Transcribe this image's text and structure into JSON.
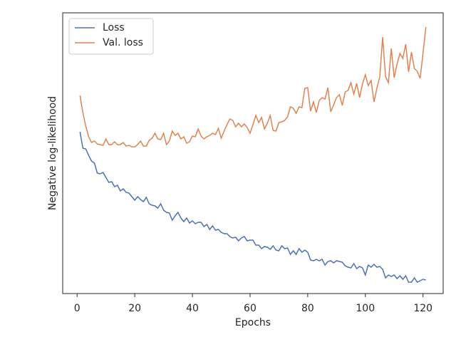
{
  "chart_data": {
    "type": "line",
    "x_label": "Epochs",
    "y_label": "Negative log-likelihood",
    "x": [
      1,
      2,
      3,
      4,
      5,
      6,
      7,
      8,
      9,
      10,
      11,
      12,
      13,
      14,
      15,
      16,
      17,
      18,
      19,
      20,
      21,
      22,
      23,
      24,
      25,
      26,
      27,
      28,
      29,
      30,
      31,
      32,
      33,
      34,
      35,
      36,
      37,
      38,
      39,
      40,
      41,
      42,
      43,
      44,
      45,
      46,
      47,
      48,
      49,
      50,
      51,
      52,
      53,
      54,
      55,
      56,
      57,
      58,
      59,
      60,
      61,
      62,
      63,
      64,
      65,
      66,
      67,
      68,
      69,
      70,
      71,
      72,
      73,
      74,
      75,
      76,
      77,
      78,
      79,
      80,
      81,
      82,
      83,
      84,
      85,
      86,
      87,
      88,
      89,
      90,
      91,
      92,
      93,
      94,
      95,
      96,
      97,
      98,
      99,
      100,
      101,
      102,
      103,
      104,
      105,
      106,
      107,
      108,
      109,
      110,
      111,
      112,
      113,
      114,
      115,
      116,
      117,
      118,
      119,
      120,
      121
    ],
    "series": [
      {
        "name": "Loss",
        "color": "#4c72b0",
        "values": [
          227,
          204,
          203,
          194,
          186,
          183,
          169,
          168,
          170,
          163,
          156,
          157,
          150,
          152,
          144,
          147,
          142,
          141,
          136,
          131,
          136,
          132,
          129,
          135,
          126,
          124,
          123,
          120,
          126,
          117,
          114,
          113,
          103,
          109,
          114,
          106,
          101,
          106,
          99,
          102,
          98,
          100,
          100,
          94,
          97,
          90,
          95,
          89,
          90,
          86,
          84,
          84,
          80,
          78,
          79,
          74,
          78,
          80,
          74,
          75,
          75,
          68,
          68,
          63,
          66,
          65,
          62,
          67,
          61,
          60,
          67,
          63,
          64,
          55,
          60,
          55,
          63,
          58,
          61,
          58,
          47,
          46,
          48,
          46,
          48,
          40,
          45,
          46,
          43,
          46,
          45,
          44,
          39,
          37,
          36,
          42,
          35,
          38,
          36,
          26,
          40,
          37,
          41,
          37,
          38,
          34,
          22,
          26,
          24,
          26,
          21,
          25,
          20,
          25,
          16,
          16,
          22,
          16,
          18,
          20,
          19
        ]
      },
      {
        "name": "Val. loss",
        "color": "#dd8452",
        "values": [
          278,
          254,
          235,
          220,
          212,
          214,
          210,
          209,
          208,
          217,
          209,
          209,
          213,
          209,
          209,
          212,
          207,
          208,
          206,
          206,
          209,
          214,
          207,
          207,
          215,
          218,
          225,
          217,
          216,
          225,
          209,
          214,
          228,
          222,
          225,
          217,
          220,
          211,
          213,
          221,
          220,
          231,
          221,
          217,
          220,
          222,
          225,
          223,
          232,
          218,
          228,
          237,
          245,
          243,
          234,
          239,
          234,
          238,
          233,
          225,
          237,
          250,
          240,
          247,
          231,
          239,
          250,
          229,
          228,
          240,
          241,
          243,
          248,
          262,
          260,
          253,
          262,
          261,
          288,
          289,
          256,
          269,
          254,
          271,
          275,
          273,
          289,
          255,
          265,
          275,
          279,
          264,
          283,
          285,
          296,
          280,
          295,
          275,
          294,
          307,
          292,
          299,
          269,
          288,
          304,
          360,
          305,
          296,
          344,
          303,
          322,
          337,
          330,
          350,
          311,
          339,
          316,
          312,
          302,
          337,
          374
        ]
      }
    ],
    "xlim": [
      -5,
      127
    ],
    "xticks": [
      0,
      20,
      40,
      60,
      80,
      100,
      120
    ],
    "ylim": [
      0,
      394
    ],
    "legend": "upper left",
    "grid": false
  }
}
